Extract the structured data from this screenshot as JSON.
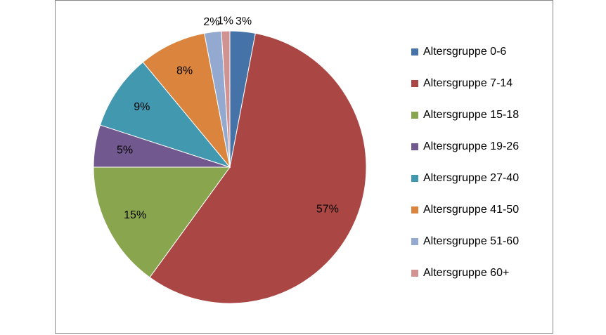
{
  "chart_data": {
    "type": "pie",
    "categories": [
      "Altersgruppe 0-6",
      "Altersgruppe 7-14",
      "Altersgruppe 15-18",
      "Altersgruppe 19-26",
      "Altersgruppe 27-40",
      "Altersgruppe 41-50",
      "Altersgruppe 51-60",
      "Altersgruppe 60+"
    ],
    "values": [
      3,
      57,
      15,
      5,
      9,
      8,
      2,
      1
    ],
    "value_labels": [
      "3%",
      "57%",
      "15%",
      "5%",
      "9%",
      "8%",
      "2%",
      "1%"
    ],
    "colors": [
      "#4572A7",
      "#AA4643",
      "#89A54E",
      "#71588F",
      "#4198AF",
      "#DB843D",
      "#93A9CF",
      "#D19392"
    ],
    "legend": "right"
  }
}
